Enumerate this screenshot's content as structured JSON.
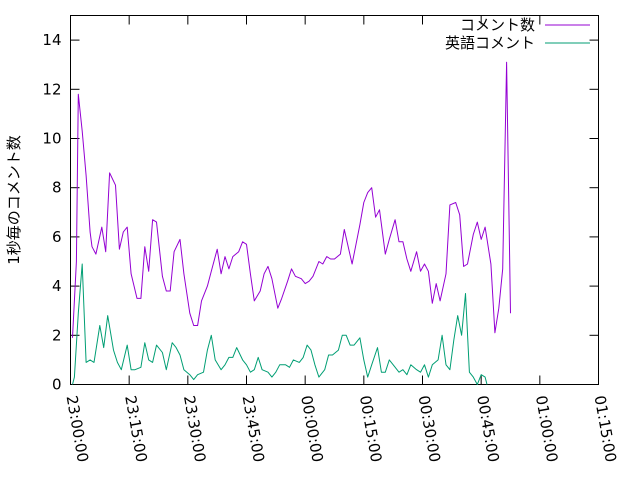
{
  "chart_data": {
    "type": "line",
    "title": "",
    "xlabel": "",
    "ylabel": "1秒毎のコメント数",
    "xlim": [
      "23:00:00",
      "01:15:00"
    ],
    "ylim": [
      0,
      15
    ],
    "xticks": [
      "23:00:00",
      "23:15:00",
      "23:30:00",
      "23:45:00",
      "00:00:00",
      "00:15:00",
      "00:30:00",
      "00:45:00",
      "01:00:00",
      "01:15:00"
    ],
    "yticks": [
      "0",
      "2",
      "4",
      "6",
      "8",
      "10",
      "12",
      "14"
    ],
    "grid": false,
    "legend_position": "top-right",
    "series": [
      {
        "name": "コメント数",
        "color": "#9400d3",
        "points": [
          [
            "23:00:30",
            1.9
          ],
          [
            "23:01:30",
            5.0
          ],
          [
            "23:02:00",
            11.8
          ],
          [
            "23:03:00",
            10.3
          ],
          [
            "23:04:00",
            8.5
          ],
          [
            "23:05:00",
            6.2
          ],
          [
            "23:05:30",
            5.6
          ],
          [
            "23:06:30",
            5.3
          ],
          [
            "23:08:00",
            6.4
          ],
          [
            "23:09:00",
            5.4
          ],
          [
            "23:10:00",
            8.6
          ],
          [
            "23:11:30",
            8.1
          ],
          [
            "23:12:30",
            5.5
          ],
          [
            "23:13:30",
            6.2
          ],
          [
            "23:14:30",
            6.4
          ],
          [
            "23:15:30",
            4.5
          ],
          [
            "23:17:00",
            3.5
          ],
          [
            "23:18:00",
            3.5
          ],
          [
            "23:19:00",
            5.6
          ],
          [
            "23:20:00",
            4.6
          ],
          [
            "23:21:00",
            6.7
          ],
          [
            "23:22:00",
            6.6
          ],
          [
            "23:23:30",
            4.4
          ],
          [
            "23:24:30",
            3.8
          ],
          [
            "23:25:30",
            3.8
          ],
          [
            "23:26:30",
            5.4
          ],
          [
            "23:28:00",
            5.9
          ],
          [
            "23:29:00",
            4.5
          ],
          [
            "23:30:30",
            2.9
          ],
          [
            "23:31:30",
            2.4
          ],
          [
            "23:32:30",
            2.4
          ],
          [
            "23:33:30",
            3.4
          ],
          [
            "23:35:00",
            4.0
          ],
          [
            "23:36:00",
            4.6
          ],
          [
            "23:37:30",
            5.5
          ],
          [
            "23:38:30",
            4.5
          ],
          [
            "23:39:30",
            5.2
          ],
          [
            "23:40:30",
            4.7
          ],
          [
            "23:41:30",
            5.2
          ],
          [
            "23:43:00",
            5.4
          ],
          [
            "23:44:00",
            5.8
          ],
          [
            "23:45:00",
            5.7
          ],
          [
            "23:46:00",
            4.5
          ],
          [
            "23:47:00",
            3.4
          ],
          [
            "23:48:30",
            3.8
          ],
          [
            "23:49:30",
            4.5
          ],
          [
            "23:50:30",
            4.8
          ],
          [
            "23:51:30",
            4.3
          ],
          [
            "23:53:00",
            3.1
          ],
          [
            "23:54:00",
            3.5
          ],
          [
            "23:55:30",
            4.2
          ],
          [
            "23:56:30",
            4.7
          ],
          [
            "23:57:30",
            4.4
          ],
          [
            "23:59:00",
            4.3
          ],
          [
            "00:00:00",
            4.1
          ],
          [
            "00:01:00",
            4.2
          ],
          [
            "00:02:00",
            4.4
          ],
          [
            "00:03:30",
            5.0
          ],
          [
            "00:04:30",
            4.9
          ],
          [
            "00:05:30",
            5.2
          ],
          [
            "00:06:30",
            5.1
          ],
          [
            "00:07:30",
            5.1
          ],
          [
            "00:09:00",
            5.3
          ],
          [
            "00:10:00",
            6.3
          ],
          [
            "00:12:00",
            4.9
          ],
          [
            "00:13:00",
            5.7
          ],
          [
            "00:14:00",
            6.5
          ],
          [
            "00:15:00",
            7.4
          ],
          [
            "00:16:00",
            7.8
          ],
          [
            "00:17:00",
            8.0
          ],
          [
            "00:18:00",
            6.8
          ],
          [
            "00:19:00",
            7.1
          ],
          [
            "00:20:30",
            5.3
          ],
          [
            "00:21:30",
            5.9
          ],
          [
            "00:23:00",
            6.7
          ],
          [
            "00:24:00",
            5.8
          ],
          [
            "00:25:00",
            5.8
          ],
          [
            "00:26:00",
            5.1
          ],
          [
            "00:27:00",
            4.6
          ],
          [
            "00:28:30",
            5.4
          ],
          [
            "00:29:30",
            4.6
          ],
          [
            "00:30:30",
            4.9
          ],
          [
            "00:31:30",
            4.6
          ],
          [
            "00:32:30",
            3.3
          ],
          [
            "00:33:30",
            4.1
          ],
          [
            "00:34:30",
            3.4
          ],
          [
            "00:36:00",
            4.5
          ],
          [
            "00:37:00",
            7.3
          ],
          [
            "00:38:30",
            7.4
          ],
          [
            "00:39:30",
            6.9
          ],
          [
            "00:40:30",
            4.8
          ],
          [
            "00:41:30",
            4.9
          ],
          [
            "00:43:00",
            6.1
          ],
          [
            "00:44:00",
            6.6
          ],
          [
            "00:45:00",
            5.9
          ],
          [
            "00:46:00",
            6.4
          ],
          [
            "00:47:30",
            4.9
          ],
          [
            "00:48:30",
            2.1
          ],
          [
            "00:49:30",
            3.1
          ],
          [
            "00:50:30",
            4.7
          ],
          [
            "00:51:30",
            13.1
          ],
          [
            "00:52:30",
            2.9
          ]
        ]
      },
      {
        "name": "英語コメント",
        "color": "#009e73",
        "points": [
          [
            "23:00:30",
            0.0
          ],
          [
            "23:01:00",
            0.3
          ],
          [
            "23:02:00",
            2.9
          ],
          [
            "23:03:00",
            4.9
          ],
          [
            "23:04:00",
            0.9
          ],
          [
            "23:05:00",
            1.0
          ],
          [
            "23:06:00",
            0.9
          ],
          [
            "23:07:30",
            2.4
          ],
          [
            "23:08:30",
            1.5
          ],
          [
            "23:09:30",
            2.8
          ],
          [
            "23:11:00",
            1.4
          ],
          [
            "23:12:00",
            0.9
          ],
          [
            "23:13:00",
            0.6
          ],
          [
            "23:14:30",
            1.6
          ],
          [
            "23:15:30",
            0.6
          ],
          [
            "23:16:30",
            0.6
          ],
          [
            "23:18:00",
            0.7
          ],
          [
            "23:19:00",
            1.7
          ],
          [
            "23:20:00",
            1.0
          ],
          [
            "23:21:00",
            0.9
          ],
          [
            "23:22:00",
            1.6
          ],
          [
            "23:23:30",
            1.3
          ],
          [
            "23:24:30",
            0.6
          ],
          [
            "23:26:00",
            1.7
          ],
          [
            "23:27:00",
            1.5
          ],
          [
            "23:28:00",
            1.2
          ],
          [
            "23:29:00",
            0.6
          ],
          [
            "23:30:30",
            0.4
          ],
          [
            "23:31:30",
            0.2
          ],
          [
            "23:32:30",
            0.4
          ],
          [
            "23:34:00",
            0.5
          ],
          [
            "23:35:00",
            1.4
          ],
          [
            "23:36:00",
            2.0
          ],
          [
            "23:37:00",
            1.0
          ],
          [
            "23:38:30",
            0.6
          ],
          [
            "23:39:30",
            0.8
          ],
          [
            "23:40:30",
            1.1
          ],
          [
            "23:41:30",
            1.1
          ],
          [
            "23:42:30",
            1.5
          ],
          [
            "23:44:00",
            1.0
          ],
          [
            "23:45:00",
            0.8
          ],
          [
            "23:46:00",
            0.5
          ],
          [
            "23:47:00",
            0.6
          ],
          [
            "23:48:00",
            1.1
          ],
          [
            "23:49:00",
            0.6
          ],
          [
            "23:50:30",
            0.5
          ],
          [
            "23:51:30",
            0.3
          ],
          [
            "23:52:30",
            0.5
          ],
          [
            "23:53:30",
            0.8
          ],
          [
            "23:55:00",
            0.8
          ],
          [
            "23:56:00",
            0.7
          ],
          [
            "23:57:00",
            1.0
          ],
          [
            "23:58:30",
            0.9
          ],
          [
            "23:59:30",
            1.1
          ],
          [
            "00:00:30",
            1.6
          ],
          [
            "00:01:30",
            1.4
          ],
          [
            "00:02:30",
            0.8
          ],
          [
            "00:03:30",
            0.3
          ],
          [
            "00:05:00",
            0.6
          ],
          [
            "00:06:00",
            1.2
          ],
          [
            "00:07:00",
            1.2
          ],
          [
            "00:08:30",
            1.4
          ],
          [
            "00:09:30",
            2.0
          ],
          [
            "00:10:30",
            2.0
          ],
          [
            "00:11:30",
            1.6
          ],
          [
            "00:12:30",
            1.6
          ],
          [
            "00:14:00",
            1.9
          ],
          [
            "00:15:00",
            1.0
          ],
          [
            "00:16:00",
            0.3
          ],
          [
            "00:17:00",
            0.8
          ],
          [
            "00:18:30",
            1.5
          ],
          [
            "00:19:30",
            0.5
          ],
          [
            "00:20:30",
            0.5
          ],
          [
            "00:21:30",
            1.0
          ],
          [
            "00:22:30",
            0.8
          ],
          [
            "00:24:00",
            0.5
          ],
          [
            "00:25:00",
            0.6
          ],
          [
            "00:26:00",
            0.4
          ],
          [
            "00:27:00",
            0.8
          ],
          [
            "00:28:30",
            0.6
          ],
          [
            "00:29:30",
            0.5
          ],
          [
            "00:30:30",
            0.8
          ],
          [
            "00:31:30",
            0.3
          ],
          [
            "00:32:30",
            0.8
          ],
          [
            "00:34:00",
            1.0
          ],
          [
            "00:35:00",
            2.0
          ],
          [
            "00:36:00",
            0.8
          ],
          [
            "00:37:00",
            0.6
          ],
          [
            "00:38:00",
            1.8
          ],
          [
            "00:39:00",
            2.8
          ],
          [
            "00:40:00",
            2.0
          ],
          [
            "00:41:00",
            3.7
          ],
          [
            "00:42:00",
            0.5
          ],
          [
            "00:43:00",
            0.3
          ],
          [
            "00:44:00",
            0.0
          ],
          [
            "00:45:00",
            0.4
          ],
          [
            "00:46:00",
            0.3
          ],
          [
            "00:46:30",
            0.0
          ]
        ]
      }
    ]
  }
}
